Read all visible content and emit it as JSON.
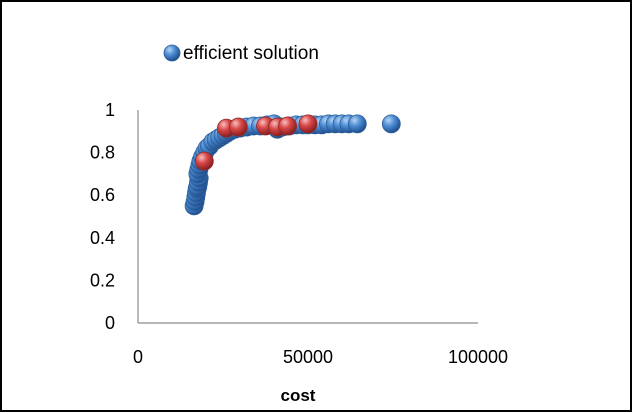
{
  "chart_data": {
    "type": "scatter",
    "xlabel": "cost",
    "ylabel": "",
    "xlim": [
      0,
      100000
    ],
    "ylim": [
      0,
      1
    ],
    "x_ticks": [
      "0",
      "50000",
      "100000"
    ],
    "y_ticks": [
      "0",
      "0.2",
      "0.4",
      "0.6",
      "0.8",
      "1"
    ],
    "grid": false,
    "legend_position": "top-left",
    "series": [
      {
        "name": "efficient solution",
        "color": "#3b7dc9",
        "points": [
          {
            "x": 16500,
            "y": 0.55
          },
          {
            "x": 16800,
            "y": 0.57
          },
          {
            "x": 17000,
            "y": 0.59
          },
          {
            "x": 17200,
            "y": 0.61
          },
          {
            "x": 17400,
            "y": 0.63
          },
          {
            "x": 17600,
            "y": 0.64
          },
          {
            "x": 17800,
            "y": 0.66
          },
          {
            "x": 18000,
            "y": 0.68
          },
          {
            "x": 17600,
            "y": 0.7
          },
          {
            "x": 17900,
            "y": 0.72
          },
          {
            "x": 18200,
            "y": 0.74
          },
          {
            "x": 18500,
            "y": 0.76
          },
          {
            "x": 19000,
            "y": 0.78
          },
          {
            "x": 19600,
            "y": 0.8
          },
          {
            "x": 20300,
            "y": 0.82
          },
          {
            "x": 21000,
            "y": 0.83
          },
          {
            "x": 22000,
            "y": 0.85
          },
          {
            "x": 23000,
            "y": 0.86
          },
          {
            "x": 24000,
            "y": 0.87
          },
          {
            "x": 25000,
            "y": 0.88
          },
          {
            "x": 26000,
            "y": 0.89
          },
          {
            "x": 27000,
            "y": 0.9
          },
          {
            "x": 28500,
            "y": 0.91
          },
          {
            "x": 30000,
            "y": 0.915
          },
          {
            "x": 32000,
            "y": 0.92
          },
          {
            "x": 34000,
            "y": 0.925
          },
          {
            "x": 36000,
            "y": 0.925
          },
          {
            "x": 38000,
            "y": 0.93
          },
          {
            "x": 40000,
            "y": 0.935
          },
          {
            "x": 41000,
            "y": 0.91
          },
          {
            "x": 42500,
            "y": 0.92
          },
          {
            "x": 44500,
            "y": 0.925
          },
          {
            "x": 46500,
            "y": 0.93
          },
          {
            "x": 48500,
            "y": 0.93
          },
          {
            "x": 50000,
            "y": 0.93
          },
          {
            "x": 52000,
            "y": 0.93
          },
          {
            "x": 54000,
            "y": 0.93
          },
          {
            "x": 56000,
            "y": 0.935
          },
          {
            "x": 58000,
            "y": 0.935
          },
          {
            "x": 60000,
            "y": 0.935
          },
          {
            "x": 62000,
            "y": 0.935
          },
          {
            "x": 64500,
            "y": 0.935
          },
          {
            "x": 74500,
            "y": 0.935
          }
        ]
      },
      {
        "name": "",
        "color": "#d23b3b",
        "points": [
          {
            "x": 19500,
            "y": 0.76
          },
          {
            "x": 26000,
            "y": 0.915
          },
          {
            "x": 29500,
            "y": 0.92
          },
          {
            "x": 37500,
            "y": 0.925
          },
          {
            "x": 41000,
            "y": 0.92
          },
          {
            "x": 44000,
            "y": 0.925
          },
          {
            "x": 50000,
            "y": 0.935
          }
        ]
      }
    ]
  }
}
